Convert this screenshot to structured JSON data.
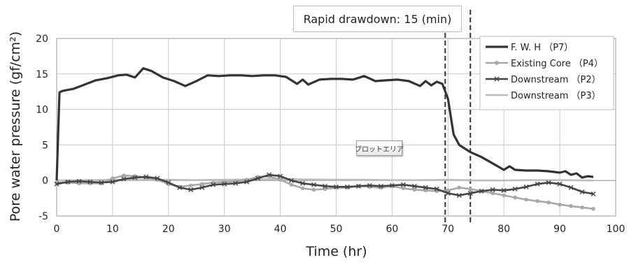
{
  "chart_data": {
    "type": "line",
    "title": "",
    "xlabel": "Time (hr)",
    "ylabel": "Pore water pressure (gf/cm²)",
    "xlim": [
      0,
      100
    ],
    "ylim": [
      -5,
      20
    ],
    "xticks": [
      "0",
      "10",
      "20",
      "30",
      "40",
      "50",
      "60",
      "70",
      "80",
      "90",
      "100"
    ],
    "yticks": [
      "-5",
      "0",
      "5",
      "10",
      "15",
      "20"
    ],
    "grid": true,
    "legend_position": "top-right",
    "annotation": "Rapid drawdown: 15 (min)",
    "tooltip": "プロットエリア",
    "vlines": [
      69.5,
      74
    ],
    "series": [
      {
        "name": "F. W. H （P7）",
        "color": "#333333",
        "marker": "none",
        "x": [
          0,
          0.5,
          1,
          3,
          5,
          7,
          9,
          11,
          12.5,
          14,
          15.5,
          17,
          19,
          21,
          23,
          25,
          27,
          29,
          31,
          33,
          35,
          37,
          39,
          41,
          43,
          44,
          45,
          47,
          49,
          51,
          53,
          55,
          57,
          59,
          61,
          63,
          65,
          66,
          67,
          68,
          69,
          70,
          71,
          72,
          74,
          76,
          78,
          80,
          81,
          82,
          84,
          86,
          88,
          90,
          91,
          92,
          93,
          94,
          95,
          96
        ],
        "y": [
          0,
          12.4,
          12.6,
          12.9,
          13.5,
          14.1,
          14.4,
          14.8,
          14.9,
          14.5,
          15.8,
          15.4,
          14.5,
          14.0,
          13.3,
          14.0,
          14.8,
          14.7,
          14.8,
          14.8,
          14.7,
          14.8,
          14.8,
          14.6,
          13.6,
          14.2,
          13.5,
          14.2,
          14.3,
          14.3,
          14.2,
          14.7,
          14.0,
          14.1,
          14.2,
          14.0,
          13.3,
          14.0,
          13.4,
          13.9,
          13.6,
          11.5,
          6.5,
          5.0,
          4.0,
          3.3,
          2.4,
          1.5,
          2.0,
          1.5,
          1.4,
          1.4,
          1.3,
          1.1,
          1.3,
          0.8,
          1.0,
          0.4,
          0.6,
          0.5
        ]
      },
      {
        "name": "Existing Core （P4）",
        "color": "#a9a9a9",
        "marker": "circle",
        "x": [
          0,
          2,
          4,
          6,
          8,
          10,
          12,
          14,
          16,
          18,
          20,
          22,
          24,
          26,
          28,
          30,
          32,
          34,
          36,
          38,
          40,
          42,
          44,
          46,
          48,
          50,
          52,
          54,
          56,
          58,
          60,
          62,
          64,
          66,
          68,
          70,
          72,
          74,
          76,
          78,
          80,
          82,
          84,
          86,
          88,
          90,
          92,
          94,
          96
        ],
        "y": [
          -0.3,
          -0.3,
          -0.4,
          -0.4,
          -0.4,
          0.3,
          0.7,
          0.6,
          0.4,
          0.1,
          -0.5,
          -0.9,
          -0.7,
          -0.5,
          -0.3,
          -0.2,
          -0.1,
          0.1,
          0.5,
          0.6,
          0.1,
          -0.6,
          -1.1,
          -1.3,
          -1.2,
          -1.0,
          -1.0,
          -0.8,
          -0.9,
          -1.0,
          -0.8,
          -1.1,
          -1.3,
          -1.4,
          -1.5,
          -1.4,
          -1.0,
          -1.2,
          -1.5,
          -1.8,
          -2.1,
          -2.4,
          -2.7,
          -2.9,
          -3.1,
          -3.4,
          -3.6,
          -3.8,
          -4.0
        ]
      },
      {
        "name": "Downstream （P2）",
        "color": "#444444",
        "marker": "x",
        "x": [
          0,
          2,
          4,
          6,
          8,
          10,
          12,
          14,
          16,
          18,
          20,
          22,
          24,
          26,
          28,
          30,
          32,
          34,
          36,
          38,
          40,
          42,
          44,
          46,
          48,
          50,
          52,
          54,
          56,
          58,
          60,
          62,
          64,
          66,
          68,
          70,
          72,
          74,
          76,
          78,
          80,
          82,
          84,
          86,
          88,
          90,
          92,
          94,
          96
        ],
        "y": [
          -0.5,
          -0.2,
          -0.1,
          -0.2,
          -0.3,
          -0.2,
          0.2,
          0.4,
          0.5,
          0.3,
          -0.3,
          -1.0,
          -1.3,
          -1.0,
          -0.6,
          -0.5,
          -0.4,
          -0.2,
          0.3,
          0.8,
          0.6,
          0.0,
          -0.4,
          -0.6,
          -0.8,
          -0.9,
          -0.9,
          -0.8,
          -0.7,
          -0.8,
          -0.7,
          -0.6,
          -0.8,
          -1.0,
          -1.2,
          -1.8,
          -2.1,
          -1.8,
          -1.5,
          -1.3,
          -1.4,
          -1.2,
          -0.9,
          -0.5,
          -0.3,
          -0.5,
          -1.0,
          -1.6,
          -1.9
        ]
      },
      {
        "name": "Downstream （P3）",
        "color": "#bdbdbd",
        "marker": "none",
        "x": [
          0,
          5,
          10,
          15,
          20,
          25,
          30,
          35,
          40,
          45,
          50,
          55,
          60,
          65,
          70,
          75,
          80,
          85,
          90,
          96
        ],
        "y": [
          0.0,
          0.05,
          0.1,
          0.1,
          0.1,
          0.05,
          0.1,
          0.15,
          0.2,
          0.15,
          0.1,
          0.1,
          0.05,
          0.05,
          0.1,
          0.0,
          0.0,
          0.05,
          0.05,
          0.0
        ]
      }
    ]
  }
}
